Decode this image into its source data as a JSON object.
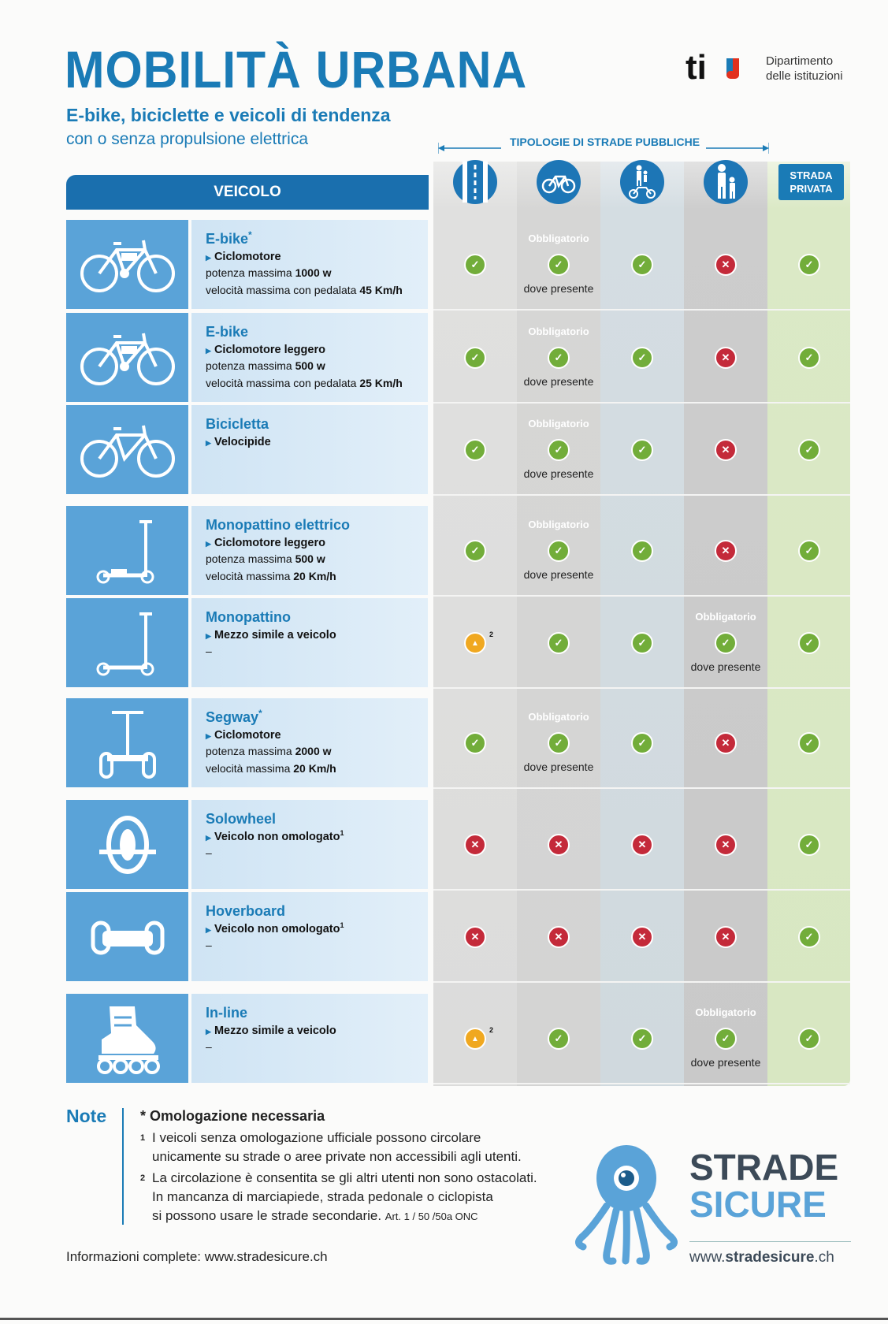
{
  "header": {
    "title": "MOBILITÀ URBANA",
    "subtitle": "E-bike, biciclette e veicoli di tendenza",
    "subtitle2": "con o senza propulsione elettrica",
    "dept_logo": "ti",
    "dept_text": "Dipartimento\ndelle istituzioni"
  },
  "table": {
    "vehicle_header": "VEICOLO",
    "road_types_label": "TIPOLOGIE DI STRADE PUBBLICHE",
    "private_road_label": "STRADA PRIVATA",
    "columns": [
      {
        "icon": "road-lane-icon"
      },
      {
        "icon": "bicycle-path-icon"
      },
      {
        "icon": "pedestrian-bicycle-path-icon"
      },
      {
        "icon": "pedestrian-path-icon"
      },
      {
        "icon": "private-road-label"
      }
    ],
    "legend_words": {
      "mandatory": "Obbligatorio",
      "where_present": "dove presente"
    },
    "rows": [
      {
        "icon": "ebike-icon",
        "name": "E-bike",
        "asterisk": "*",
        "category": "Ciclomotore",
        "line3_prefix": "potenza massima ",
        "line3_value": "1000 w",
        "line4_prefix": "velocità massima con pedalata ",
        "line4_value": "45 Km/h",
        "marks": [
          "ok",
          "ok",
          "ok",
          "no",
          "ok"
        ],
        "mandatory_col": 1
      },
      {
        "icon": "ebike-icon",
        "name": "E-bike",
        "asterisk": "",
        "category": "Ciclomotore leggero",
        "line3_prefix": "potenza massima ",
        "line3_value": "500 w",
        "line4_prefix": "velocità massima con pedalata ",
        "line4_value": "25 Km/h",
        "marks": [
          "ok",
          "ok",
          "ok",
          "no",
          "ok"
        ],
        "mandatory_col": 1
      },
      {
        "icon": "bicycle-icon",
        "name": "Bicicletta",
        "asterisk": "",
        "category": "Velocipide",
        "line3_prefix": "",
        "line3_value": "",
        "line4_prefix": "",
        "line4_value": "",
        "marks": [
          "ok",
          "ok",
          "ok",
          "no",
          "ok"
        ],
        "mandatory_col": 1
      },
      {
        "icon": "electric-scooter-icon",
        "name": "Monopattino elettrico",
        "asterisk": "",
        "category": "Ciclomotore leggero",
        "line3_prefix": "potenza massima ",
        "line3_value": "500 w",
        "line4_prefix": "velocità massima ",
        "line4_value": "20 Km/h",
        "marks": [
          "ok",
          "ok",
          "ok",
          "no",
          "ok"
        ],
        "mandatory_col": 1
      },
      {
        "icon": "scooter-icon",
        "name": "Monopattino",
        "asterisk": "",
        "category": "Mezzo simile a veicolo",
        "line3_prefix": "–",
        "line3_value": "",
        "line4_prefix": "",
        "line4_value": "",
        "marks": [
          "warn",
          "ok",
          "ok",
          "ok",
          "ok"
        ],
        "mandatory_col": 3,
        "warn_sup": "2"
      },
      {
        "icon": "segway-icon",
        "name": "Segway",
        "asterisk": "*",
        "category": "Ciclomotore",
        "line3_prefix": "potenza massima ",
        "line3_value": "2000 w",
        "line4_prefix": "velocità massima ",
        "line4_value": "20 Km/h",
        "marks": [
          "ok",
          "ok",
          "ok",
          "no",
          "ok"
        ],
        "mandatory_col": 1
      },
      {
        "icon": "solowheel-icon",
        "name": "Solowheel",
        "asterisk": "",
        "category": "Veicolo non omologato",
        "category_sup": "1",
        "line3_prefix": "–",
        "line3_value": "",
        "line4_prefix": "",
        "line4_value": "",
        "marks": [
          "no",
          "no",
          "no",
          "no",
          "ok"
        ],
        "mandatory_col": -1
      },
      {
        "icon": "hoverboard-icon",
        "name": "Hoverboard",
        "asterisk": "",
        "category": "Veicolo non omologato",
        "category_sup": "1",
        "line3_prefix": "–",
        "line3_value": "",
        "line4_prefix": "",
        "line4_value": "",
        "marks": [
          "no",
          "no",
          "no",
          "no",
          "ok"
        ],
        "mandatory_col": -1
      },
      {
        "icon": "inline-skate-icon",
        "name": "In-line",
        "asterisk": "",
        "category": "Mezzo simile a veicolo",
        "line3_prefix": "–",
        "line3_value": "",
        "line4_prefix": "",
        "line4_value": "",
        "marks": [
          "warn",
          "ok",
          "ok",
          "ok",
          "ok"
        ],
        "mandatory_col": 3,
        "warn_sup": "2"
      }
    ]
  },
  "notes": {
    "label": "Note",
    "asterisk_note": "* Omologazione necessaria",
    "note1_num": "1",
    "note1_line1": "I veicoli senza omologazione ufficiale possono circolare",
    "note1_line2": "unicamente su strade o aree private non accessibili agli utenti.",
    "note2_num": "2",
    "note2_line1": "La circolazione è consentita se gli altri utenti non sono ostacolati.",
    "note2_line2": "In mancanza di marciapiede, strada pedonale o ciclopista",
    "note2_line3": "si possono usare le strade secondarie.",
    "note2_ref": "Art. 1 / 50 /50a ONC"
  },
  "footer": {
    "info": "Informazioni complete: www.stradesicure.ch",
    "brand_line1": "STRADE",
    "brand_line2": "SICURE",
    "url_prefix": "www.",
    "url_bold": "stradesicure",
    "url_suffix": ".ch"
  },
  "colors": {
    "accent": "#1a7bb6",
    "ok": "#72ad3a",
    "no": "#c42a3a",
    "warn": "#f0a820"
  }
}
